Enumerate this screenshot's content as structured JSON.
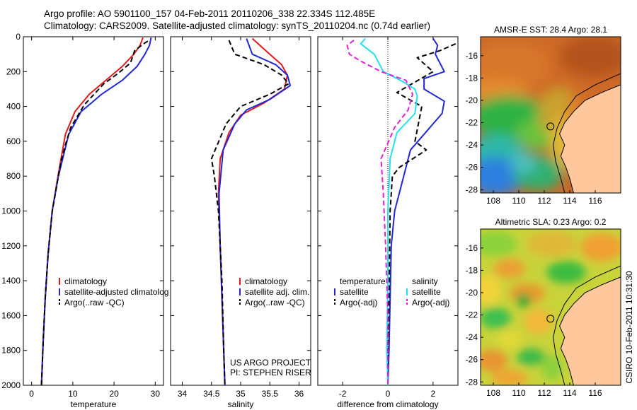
{
  "header": {
    "line1": "Argo profile: AO 5901100_157 04-Feb-2011 20110206_338 22.334S 112.485E",
    "line2": "Climatology: CARS2009. Satellite-adjusted climatology: synTS_20110204.nc (0.74d earlier)"
  },
  "colors": {
    "climatology": "#e31a1c",
    "satellite": "#1f28d6",
    "argo": "#000000",
    "sal_satellite": "#22e0ee",
    "sal_argo": "#e320d8",
    "land": "#ffc89c"
  },
  "chart_data": [
    {
      "type": "line",
      "xlabel": "temperature",
      "xlim": [
        -2,
        32
      ],
      "ylim": [
        2000,
        0
      ],
      "y_reversed": true,
      "xticks": [
        0,
        10,
        20,
        30
      ],
      "yticks": [
        0,
        200,
        400,
        600,
        800,
        1000,
        1200,
        1400,
        1600,
        1800,
        2000
      ],
      "legend": {
        "placement": "lower-center",
        "labels": [
          "climatology",
          "satellite-adjusted climatolog",
          "Argo(..raw -QC)"
        ]
      },
      "series": [
        {
          "name": "climatology",
          "color": "#e31a1c",
          "style": "solid",
          "x": [
            27.0,
            26.3,
            24.8,
            22.0,
            18.0,
            14.0,
            10.5,
            8.2,
            6.4,
            5.0,
            4.0,
            3.3,
            2.8,
            2.4
          ],
          "y": [
            5,
            50,
            100,
            170,
            250,
            330,
            430,
            560,
            800,
            1000,
            1250,
            1500,
            1750,
            2000
          ]
        },
        {
          "name": "satellite-adjusted climatolog",
          "color": "#1f28d6",
          "style": "solid",
          "x": [
            29.0,
            28.6,
            27.5,
            25.6,
            22.0,
            17.0,
            12.0,
            9.0,
            6.5,
            5.0,
            4.0,
            3.3,
            2.8,
            2.4
          ],
          "y": [
            5,
            50,
            100,
            170,
            250,
            330,
            430,
            560,
            800,
            1000,
            1250,
            1500,
            1750,
            2000
          ]
        },
        {
          "name": "Argo(..raw -QC)",
          "color": "#000000",
          "style": "dashed",
          "x": [
            28.2,
            27.2,
            25.0,
            24.0,
            21.0,
            17.5,
            12.8,
            9.5,
            8.2,
            7.1,
            5.0,
            4.0,
            3.3,
            2.8,
            2.4
          ],
          "y": [
            25,
            40,
            80,
            150,
            210,
            270,
            390,
            520,
            620,
            720,
            1000,
            1250,
            1500,
            1750,
            2000
          ]
        }
      ]
    },
    {
      "type": "line",
      "xlabel": "salinity",
      "xlim": [
        33.8,
        36.2
      ],
      "ylim": [
        2000,
        0
      ],
      "y_reversed": true,
      "xticks": [
        34,
        34.5,
        35,
        35.5,
        36
      ],
      "xtick_labels": [
        "34",
        "34.5",
        "35",
        "35.5",
        "36"
      ],
      "legend": {
        "placement": "lower-center",
        "labels": [
          "climatology",
          "satellite adj. clim.",
          "Argo(..raw -QC)"
        ]
      },
      "annotations": [
        "US ARGO PROJECT",
        "PI: STEPHEN RISER"
      ],
      "series": [
        {
          "name": "climatology",
          "color": "#e31a1c",
          "style": "solid",
          "x": [
            35.2,
            35.5,
            35.7,
            35.8,
            35.75,
            35.4,
            35.0,
            34.8,
            34.65,
            34.62,
            34.65,
            34.68,
            34.71,
            34.73
          ],
          "y": [
            10,
            100,
            160,
            220,
            300,
            380,
            450,
            550,
            700,
            900,
            1200,
            1500,
            1800,
            2000
          ]
        },
        {
          "name": "satellite adj. clim.",
          "color": "#1f28d6",
          "style": "solid",
          "x": [
            35.1,
            35.2,
            35.6,
            35.8,
            35.85,
            35.5,
            35.1,
            34.9,
            34.7,
            34.63,
            34.65,
            34.68,
            34.71,
            34.73
          ],
          "y": [
            10,
            100,
            160,
            220,
            280,
            360,
            420,
            500,
            650,
            900,
            1200,
            1500,
            1800,
            2000
          ]
        },
        {
          "name": "Argo(..raw -QC)",
          "color": "#000000",
          "style": "dashed",
          "x": [
            34.8,
            34.9,
            35.4,
            35.7,
            35.82,
            35.5,
            35.0,
            34.75,
            34.5,
            34.55,
            34.62,
            34.68,
            34.71,
            34.73
          ],
          "y": [
            20,
            100,
            160,
            220,
            270,
            330,
            400,
            500,
            700,
            800,
            1000,
            1400,
            1800,
            2000
          ]
        }
      ]
    },
    {
      "type": "line",
      "xlabel": "difference from climatology",
      "xlim": [
        -3.1,
        3.1
      ],
      "ylim": [
        2000,
        0
      ],
      "y_reversed": true,
      "xticks": [
        -2,
        0,
        2
      ],
      "reference_line": {
        "x": 0,
        "style": "dotted"
      },
      "legend": {
        "placement": "lower-center",
        "temperature": {
          "title": "temperature",
          "labels": [
            "satellite",
            "Argo(-adj)"
          ]
        },
        "salinity": {
          "title": "salinity",
          "labels": [
            "satellite",
            "Argo(-adj)"
          ]
        }
      },
      "series": [
        {
          "name": "temperature satellite",
          "color": "#1f28d6",
          "style": "solid",
          "x": [
            2.0,
            2.2,
            2.1,
            2.5,
            1.6,
            1.6,
            2.5,
            2.4,
            1.0,
            0.9,
            0.7,
            0.3,
            0.15,
            0.1,
            0.05,
            0.0
          ],
          "y": [
            10,
            50,
            100,
            200,
            240,
            300,
            370,
            440,
            650,
            700,
            800,
            1000,
            1200,
            1500,
            1800,
            2000
          ]
        },
        {
          "name": "temperature Argo(-adj)",
          "color": "#000000",
          "style": "dashed",
          "x": [
            3.0,
            2.3,
            1.3,
            2.0,
            0.4,
            1.5,
            1.2,
            1.7,
            0.5,
            0.2,
            0.1,
            0.05,
            0.0
          ],
          "y": [
            40,
            80,
            120,
            200,
            320,
            400,
            600,
            650,
            750,
            800,
            1000,
            1500,
            2000
          ]
        },
        {
          "name": "salinity satellite",
          "color": "#22e0ee",
          "style": "solid",
          "x": [
            -1.0,
            -1.2,
            -0.6,
            -0.2,
            0.7,
            1.2,
            1.3,
            1.2,
            0.4,
            0.1,
            0.0,
            0.0,
            -0.05,
            0.0
          ],
          "y": [
            10,
            40,
            100,
            200,
            260,
            300,
            340,
            440,
            550,
            700,
            1000,
            1400,
            1800,
            2000
          ]
        },
        {
          "name": "salinity Argo(-adj)",
          "color": "#e320d8",
          "style": "dashed",
          "x": [
            -1.5,
            -1.8,
            -1.7,
            -1.2,
            -0.3,
            0.8,
            1.1,
            0.9,
            0.3,
            -0.3,
            -0.2,
            -0.1,
            0.0,
            0.0
          ],
          "y": [
            20,
            50,
            100,
            140,
            200,
            250,
            330,
            420,
            520,
            700,
            900,
            1200,
            1600,
            2000
          ]
        }
      ]
    },
    {
      "type": "heatmap",
      "title": "AMSR-E SST: 28.4 Argo: 28.1",
      "xlim": [
        107,
        118
      ],
      "ylim": [
        -28.3,
        -14.3
      ],
      "xticks": [
        108,
        110,
        112,
        114,
        116
      ],
      "yticks": [
        -16,
        -18,
        -20,
        -22,
        -24,
        -26,
        -28
      ],
      "argo_position": {
        "lon": 112.485,
        "lat": -22.334
      }
    },
    {
      "type": "heatmap",
      "title": "Altimetric SLA: 0.23 Argo: 0.2",
      "xlim": [
        107,
        118
      ],
      "ylim": [
        -28.3,
        -14.3
      ],
      "xticks": [
        108,
        110,
        112,
        114,
        116
      ],
      "yticks": [
        -16,
        -18,
        -20,
        -22,
        -24,
        -26,
        -28
      ],
      "argo_position": {
        "lon": 112.485,
        "lat": -22.334
      }
    }
  ],
  "footer_stamp": "CSIRO 10-Feb-2011 10:31:30"
}
